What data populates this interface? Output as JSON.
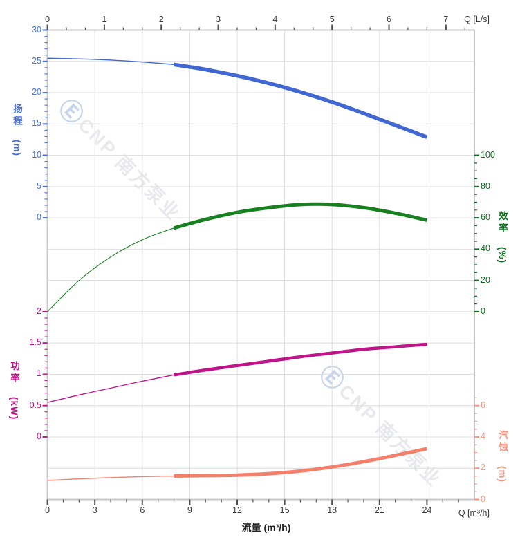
{
  "watermark": {
    "logo_glyph": "Ⓔ",
    "text": "CNP 南方泵业"
  },
  "theme": {
    "frame_color": "#c8c8c8",
    "grid_color": "#dcdcdc",
    "xaxis_tick_color": "#4d4d4d",
    "xaxis_label_color": "#383838"
  },
  "chart_data": {
    "type": "line",
    "title": "",
    "x_axis_bottom": {
      "title": "流量 (m³/h)",
      "corner_label": "Q [m³/h]",
      "unit": "m³/h",
      "range": [
        0,
        27
      ],
      "major_ticks": [
        0,
        3,
        6,
        9,
        12,
        15,
        18,
        21,
        24
      ],
      "minor_step": 1,
      "minor_range": [
        0,
        26
      ]
    },
    "x_axis_top": {
      "corner_label": "Q [L/s]",
      "unit": "L/s",
      "range": [
        0,
        7.5
      ],
      "major_ticks": [
        0,
        1,
        2,
        3,
        4,
        5,
        6,
        7
      ],
      "minor_step": 0.33333,
      "minor_range": [
        0,
        7.33333
      ]
    },
    "grid": {
      "vertical_step_m3h": 3,
      "horizontal_rows": 15,
      "grid_on": true
    },
    "series": [
      {
        "id": "head",
        "name": "扬程",
        "unit": "(m)",
        "axis_side": "left",
        "color": "#4168d2",
        "label_color": "#4a6fd9",
        "axis": {
          "max": 30,
          "label_step": 5,
          "row_of_max": 0,
          "minor_step": 1,
          "minor_range": [
            0,
            30
          ],
          "labels": [
            30,
            25,
            20,
            15,
            10,
            5,
            0
          ]
        },
        "x": [
          0,
          2,
          4,
          6,
          8,
          10,
          12,
          14,
          16,
          18,
          20,
          22,
          24
        ],
        "values": [
          25.5,
          25.4,
          25.2,
          24.9,
          24.5,
          23.7,
          22.7,
          21.5,
          20.1,
          18.5,
          16.7,
          14.8,
          12.9
        ],
        "bold_from_x": 8,
        "thick": 5.5,
        "thin": 1.4
      },
      {
        "id": "efficiency",
        "name": "效率",
        "unit": "(%)",
        "axis_side": "right",
        "color": "#17801f",
        "label_color": "#0b6e1e",
        "axis": {
          "max": 100,
          "label_step": 20,
          "row_of_max": 4,
          "minor_step": 5,
          "minor_range": [
            0,
            100
          ],
          "labels": [
            100,
            80,
            60,
            40,
            20,
            0
          ]
        },
        "x": [
          0,
          2,
          4,
          6,
          8,
          10,
          12,
          14,
          16,
          18,
          20,
          22,
          24
        ],
        "values": [
          0,
          20,
          35,
          46,
          53.5,
          59,
          63.5,
          66.5,
          68.5,
          68.5,
          66.5,
          63,
          58.5
        ],
        "bold_from_x": 8,
        "thick": 5,
        "thin": 1.1
      },
      {
        "id": "power",
        "name": "功率",
        "unit": "(kW)",
        "axis_side": "left",
        "color": "#c01489",
        "label_color": "#c01489",
        "axis": {
          "max": 2,
          "label_step": 0.5,
          "row_of_max": 9,
          "minor_step": 0.1,
          "minor_range": [
            0,
            2
          ],
          "labels": [
            2,
            1.5,
            1,
            0.5,
            0
          ]
        },
        "x": [
          0,
          2,
          4,
          6,
          8,
          10,
          12,
          14,
          16,
          18,
          20,
          22,
          24
        ],
        "values": [
          0.55,
          0.67,
          0.78,
          0.89,
          0.99,
          1.07,
          1.14,
          1.21,
          1.28,
          1.34,
          1.4,
          1.44,
          1.48
        ],
        "bold_from_x": 8,
        "thick": 4.5,
        "thin": 1.3
      },
      {
        "id": "npsh",
        "name": "汽蚀",
        "unit": "(m)",
        "axis_side": "right",
        "color": "#f4806c",
        "label_color": "#f7937f",
        "axis": {
          "max": 6,
          "label_step": 2,
          "row_of_max": 12,
          "minor_step": 0.5,
          "minor_range": [
            0,
            6.5
          ],
          "labels": [
            6,
            4,
            2,
            0
          ]
        },
        "x": [
          0,
          2,
          4,
          6,
          8,
          10,
          12,
          14,
          16,
          18,
          20,
          22,
          24
        ],
        "values": [
          1.22,
          1.32,
          1.4,
          1.46,
          1.5,
          1.53,
          1.56,
          1.65,
          1.82,
          2.08,
          2.42,
          2.82,
          3.25
        ],
        "bold_from_x": 8,
        "thick": 5,
        "thin": 1.4
      }
    ]
  }
}
